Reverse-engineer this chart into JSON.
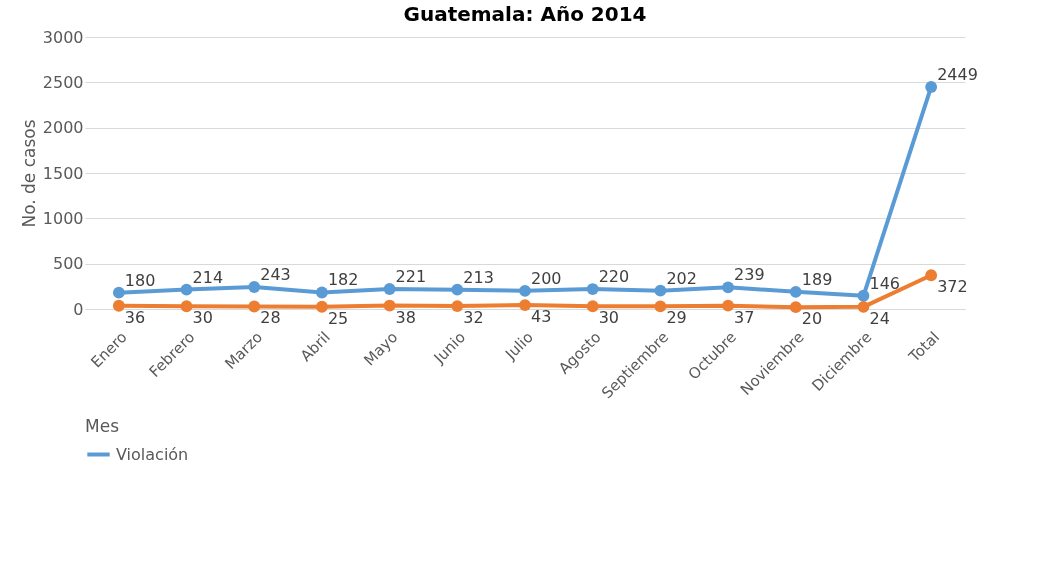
{
  "chart_data": {
    "type": "line",
    "title": "Guatemala: Año 2014",
    "xlabel": "Mes",
    "ylabel": "No. de casos",
    "categories": [
      "Enero",
      "Febrero",
      "Marzo",
      "Abril",
      "Mayo",
      "Junio",
      "Julio",
      "Agosto",
      "Septiembre",
      "Octubre",
      "Noviembre",
      "Diciembre",
      "Total"
    ],
    "series": [
      {
        "name": "Violación",
        "color": "#5b9bd5",
        "values": [
          180,
          214,
          243,
          182,
          221,
          213,
          200,
          220,
          202,
          239,
          189,
          146,
          2449
        ]
      },
      {
        "color": "#ed7d31",
        "values": [
          36,
          30,
          28,
          25,
          38,
          32,
          43,
          30,
          29,
          37,
          20,
          24,
          372
        ]
      }
    ],
    "ylim": [
      0,
      3000
    ],
    "yticks": [
      0,
      500,
      1000,
      1500,
      2000,
      2500,
      3000
    ],
    "grid": "y",
    "legend": "bottom",
    "marker": "circle",
    "line_style": "solid",
    "data_labels": true
  }
}
